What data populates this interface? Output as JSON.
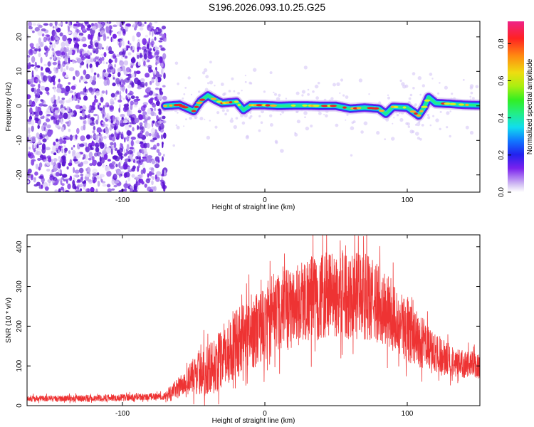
{
  "title": "S196.2026.093.10.25.G25",
  "colors": {
    "snr_line": "#ee3333",
    "signal_core": "#ee2222",
    "noise": "#8844ee",
    "frame": "#000000"
  },
  "chart_data": [
    {
      "type": "heatmap",
      "xlabel": "Height of straight line (km)",
      "ylabel": "Frequency (Hz)",
      "xlim": [
        -167,
        151
      ],
      "ylim": [
        -25,
        24.5
      ],
      "x_ticks": [
        -100,
        0,
        100
      ],
      "x_tick_labels": [
        "-100",
        "0",
        "100"
      ],
      "y_ticks": [
        -20,
        -10,
        0,
        10,
        20
      ],
      "y_tick_labels": [
        "-20",
        "-10",
        "0",
        "10",
        "20"
      ],
      "colorbar": {
        "label": "Normalized spectral amplitude",
        "range": [
          0,
          0.92
        ],
        "ticks": [
          0,
          0.2,
          0.4,
          0.6,
          0.8
        ],
        "tick_labels": [
          "0.0",
          "0.2",
          "0.4",
          "0.6",
          "0.8"
        ]
      },
      "noise_region_km": [
        -167,
        -70
      ],
      "signal_start_km": -70,
      "signal_trace": {
        "x": [
          -70,
          -60,
          -50,
          -45,
          -40,
          -35,
          -30,
          -20,
          -15,
          -10,
          0,
          10,
          20,
          30,
          40,
          50,
          60,
          70,
          80,
          85,
          90,
          100,
          108,
          112,
          115,
          120,
          130,
          140,
          151
        ],
        "y": [
          0,
          0.3,
          -1.5,
          1.5,
          3.0,
          1.8,
          0.8,
          1.2,
          -1.2,
          0.2,
          0.2,
          0,
          0.1,
          0.1,
          0,
          0,
          -0.8,
          -0.5,
          -0.8,
          -2.3,
          -0.3,
          -0.5,
          -2.8,
          -0.3,
          2.5,
          0.8,
          0.6,
          0.3,
          0.2
        ]
      }
    },
    {
      "type": "line",
      "xlabel": "Height of straight line (km)",
      "ylabel": "SNR (10 * v/v)",
      "xlim": [
        -167,
        151
      ],
      "ylim": [
        0,
        430
      ],
      "x_ticks": [
        -100,
        0,
        100
      ],
      "x_tick_labels": [
        "-100",
        "0",
        "100"
      ],
      "y_ticks": [
        0,
        100,
        200,
        300,
        400
      ],
      "y_tick_labels": [
        "0",
        "100",
        "200",
        "300",
        "400"
      ],
      "series": [
        {
          "name": "SNR",
          "envelope_x": [
            -167,
            -140,
            -100,
            -80,
            -70,
            -55,
            -45,
            -35,
            -30,
            -20,
            -10,
            0,
            10,
            20,
            30,
            40,
            50,
            60,
            70,
            80,
            90,
            100,
            110,
            120,
            130,
            140,
            151
          ],
          "envelope_mean": [
            18,
            18,
            20,
            22,
            24,
            60,
            90,
            100,
            120,
            160,
            185,
            205,
            230,
            250,
            270,
            275,
            280,
            280,
            275,
            255,
            225,
            190,
            160,
            130,
            115,
            105,
            100
          ],
          "envelope_spread": [
            8,
            8,
            9,
            9,
            10,
            35,
            60,
            70,
            80,
            90,
            95,
            95,
            100,
            105,
            110,
            110,
            110,
            115,
            110,
            100,
            90,
            80,
            65,
            50,
            40,
            35,
            35
          ]
        }
      ]
    }
  ]
}
